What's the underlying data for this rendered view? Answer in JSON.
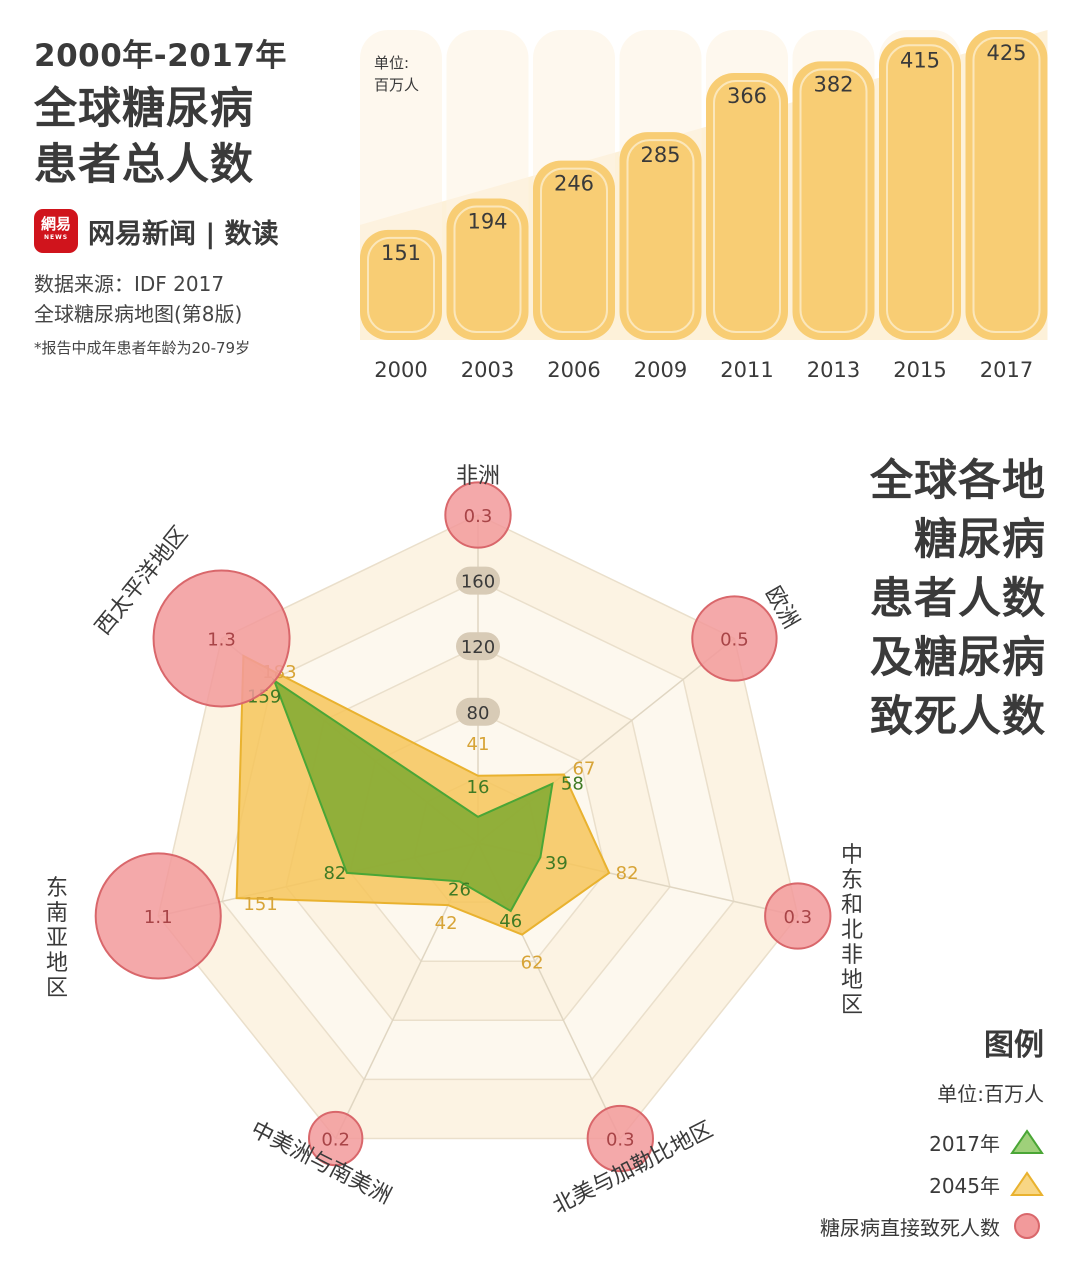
{
  "header": {
    "subtitle": "2000年-2017年",
    "title_line1": "全球糖尿病",
    "title_line2": "患者总人数",
    "brand_logo": "網易",
    "brand_logo_small": "NEWS",
    "brand": "网易新闻 | 数读",
    "source_line1": "数据来源：IDF 2017",
    "source_line2": "全球糖尿病地图(第8版)",
    "note": "*报告中成年患者年龄为20-79岁"
  },
  "radar_header": {
    "lines": [
      "全球各地",
      "糖尿病",
      "患者人数",
      "及糖尿病",
      "致死人数"
    ]
  },
  "legend": {
    "title": "图例",
    "unit": "单位:百万人",
    "item_2017": "2017年",
    "item_2045": "2045年",
    "item_deaths": "糖尿病直接致死人数"
  },
  "colors": {
    "bar_fill": "#f8cd74",
    "bar_outline": "#fbe7bb",
    "bar_bg": "#fdf1d9",
    "green_fill": "#7fa930",
    "green_line": "#4aa636",
    "yellow_fill": "#f6c55c",
    "yellow_line": "#e9b22f",
    "pink_fill": "#f29a9b",
    "pink_line": "#d9676b",
    "grid_band": "#fbf0dc"
  },
  "chart_data": [
    {
      "type": "bar",
      "unit": "单位:\n百万人",
      "categories": [
        "2000",
        "2003",
        "2006",
        "2009",
        "2011",
        "2013",
        "2015",
        "2017"
      ],
      "values": [
        151,
        194,
        246,
        285,
        366,
        382,
        415,
        425
      ]
    },
    {
      "type": "radar",
      "categories": [
        "非洲",
        "欧洲",
        "中东和北非地区",
        "北美与加勒比地区",
        "中美洲与南美洲",
        "东南亚地区",
        "西太平洋地区"
      ],
      "axis_ticks": [
        80,
        120,
        160
      ],
      "series": [
        {
          "name": "2017年",
          "values": [
            16,
            58,
            39,
            46,
            26,
            82,
            159
          ]
        },
        {
          "name": "2045年",
          "values": [
            41,
            67,
            82,
            62,
            42,
            151,
            183
          ]
        }
      ],
      "deaths": {
        "name": "糖尿病直接致死人数",
        "values": [
          0.3,
          0.5,
          0.3,
          0.3,
          0.2,
          1.1,
          1.3
        ]
      }
    }
  ]
}
